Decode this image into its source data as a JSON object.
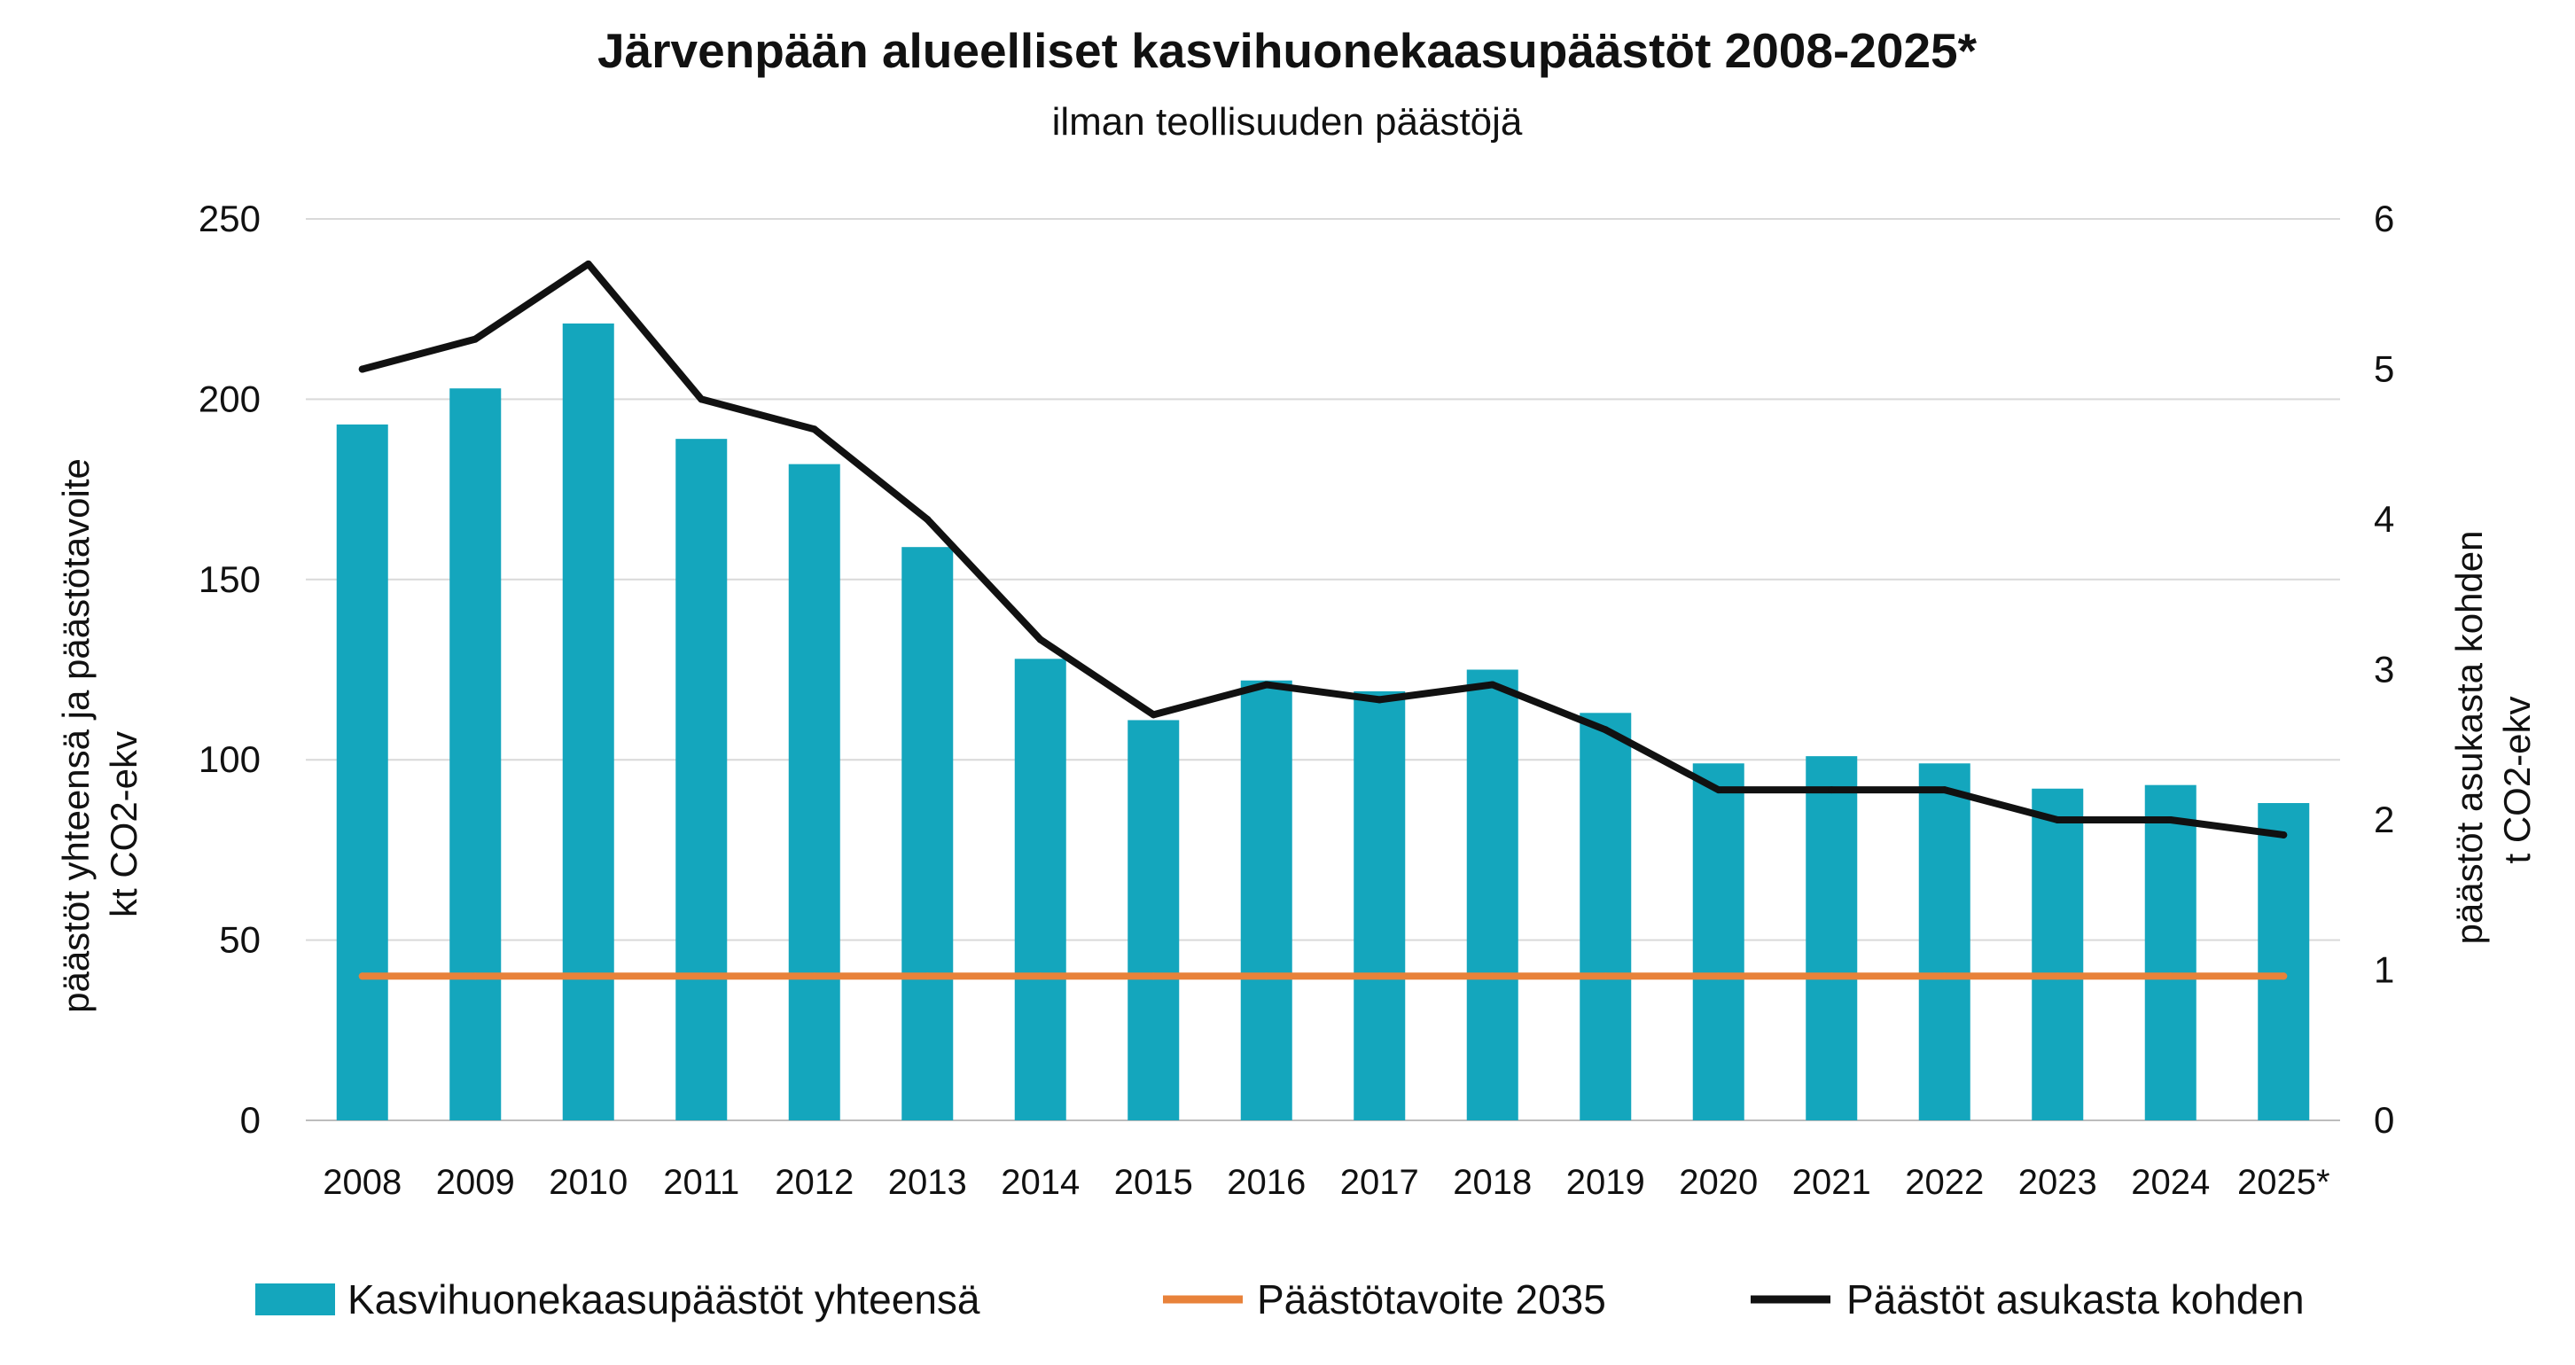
{
  "chart_data": {
    "type": "bar",
    "title": "Järvenpään alueelliset kasvihuonekaasupäästöt 2008-2025*",
    "subtitle": "ilman teollisuuden päästöjä",
    "categories": [
      "2008",
      "2009",
      "2010",
      "2011",
      "2012",
      "2013",
      "2014",
      "2015",
      "2016",
      "2017",
      "2018",
      "2019",
      "2020",
      "2021",
      "2022",
      "2023",
      "2024",
      "2025*"
    ],
    "ylabel_left_line1": "päästöt yhteensä ja päästötavoite",
    "ylabel_left_line2": "kt CO2-ekv",
    "ylabel_right_line1": "päästöt asukasta kohden",
    "ylabel_right_line2": "t CO2-ekv",
    "ylim_left": [
      0,
      250
    ],
    "yticks_left": [
      "0",
      "50",
      "100",
      "150",
      "200",
      "250"
    ],
    "ylim_right": [
      0,
      6
    ],
    "yticks_right": [
      "0",
      "1",
      "2",
      "3",
      "4",
      "5",
      "6"
    ],
    "grid": true,
    "legend_position": "bottom",
    "series": [
      {
        "name": "Kasvihuonekaasupäästöt yhteensä",
        "type": "bar",
        "axis": "left",
        "color": "#14A6BD",
        "values": [
          193,
          203,
          221,
          189,
          182,
          159,
          128,
          111,
          122,
          119,
          125,
          113,
          99,
          101,
          99,
          92,
          93,
          88
        ]
      },
      {
        "name": "Päästötavoite 2035",
        "type": "line",
        "axis": "left",
        "color": "#E8823A",
        "values": [
          40,
          40,
          40,
          40,
          40,
          40,
          40,
          40,
          40,
          40,
          40,
          40,
          40,
          40,
          40,
          40,
          40,
          40
        ]
      },
      {
        "name": "Päästöt asukasta kohden",
        "type": "line",
        "axis": "right",
        "color": "#111111",
        "values": [
          5.0,
          5.2,
          5.7,
          4.8,
          4.6,
          4.0,
          3.2,
          2.7,
          2.9,
          2.8,
          2.9,
          2.6,
          2.2,
          2.2,
          2.2,
          2.0,
          2.0,
          1.9
        ]
      }
    ]
  }
}
